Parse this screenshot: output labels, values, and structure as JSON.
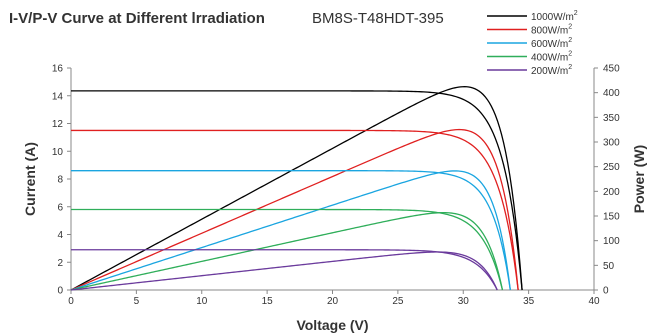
{
  "chart_data": {
    "type": "line",
    "title": "I-V/P-V Curve at Different lrradiation",
    "subtitle": "BM8S-T48HDT-395",
    "xlabel": "Voltage (V)",
    "ylabel_left": "Current (A)",
    "ylabel_right": "Power (W)",
    "xlim": [
      0,
      40
    ],
    "ylim_left": [
      0,
      16
    ],
    "ylim_right": [
      0,
      450
    ],
    "x_ticks": [
      0,
      5,
      10,
      15,
      20,
      25,
      30,
      35,
      40
    ],
    "y_left_ticks": [
      0,
      2,
      4,
      6,
      8,
      10,
      12,
      14,
      16
    ],
    "y_right_ticks": [
      0,
      50,
      100,
      150,
      200,
      250,
      300,
      350,
      400,
      450
    ],
    "grid": false,
    "legend_position": "top-right",
    "series": [
      {
        "name": "1000W/m2",
        "legend_base": "1000W/m",
        "legend_sup": "2",
        "color": "#000000",
        "isc": 14.35,
        "voc": 34.5,
        "vmp": 29.2,
        "imp": 14.0,
        "pmax": 408
      },
      {
        "name": "800W/m2",
        "legend_base": "800W/m",
        "legend_sup": "2",
        "color": "#e02020",
        "isc": 11.5,
        "voc": 34.2,
        "vmp": 28.8,
        "imp": 11.2,
        "pmax": 322
      },
      {
        "name": "600W/m2",
        "legend_base": "600W/m",
        "legend_sup": "2",
        "color": "#1aa5e0",
        "isc": 8.6,
        "voc": 33.6,
        "vmp": 28.5,
        "imp": 8.4,
        "pmax": 239
      },
      {
        "name": "400W/m2",
        "legend_base": "400W/m",
        "legend_sup": "2",
        "color": "#2fae5a",
        "isc": 5.8,
        "voc": 33.0,
        "vmp": 27.9,
        "imp": 5.6,
        "pmax": 156
      },
      {
        "name": "200W/m2",
        "legend_base": "200W/m",
        "legend_sup": "2",
        "color": "#6a3a9c",
        "isc": 2.9,
        "voc": 32.6,
        "vmp": 28.0,
        "imp": 2.75,
        "pmax": 77
      }
    ]
  }
}
